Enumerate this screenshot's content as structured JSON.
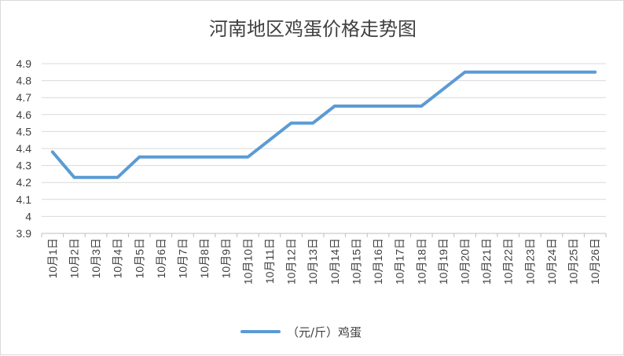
{
  "chart_data": {
    "type": "line",
    "title": "河南地区鸡蛋价格走势图",
    "categories": [
      "10月1日",
      "10月2日",
      "10月3日",
      "10月4日",
      "10月5日",
      "10月6日",
      "10月7日",
      "10月8日",
      "10月9日",
      "10月10日",
      "10月11日",
      "10月12日",
      "10月13日",
      "10月14日",
      "10月15日",
      "10月16日",
      "10月17日",
      "10月18日",
      "10月19日",
      "10月20日",
      "10月21日",
      "10月22日",
      "10月23日",
      "10月24日",
      "10月25日",
      "10月26日"
    ],
    "series": [
      {
        "name": "（元/斤）鸡蛋",
        "color": "#5b9bd5",
        "values": [
          4.38,
          4.23,
          4.23,
          4.23,
          4.35,
          4.35,
          4.35,
          4.35,
          4.35,
          4.35,
          4.45,
          4.55,
          4.55,
          4.65,
          4.65,
          4.65,
          4.65,
          4.65,
          4.75,
          4.85,
          4.85,
          4.85,
          4.85,
          4.85,
          4.85,
          4.85
        ]
      }
    ],
    "yticks": [
      "3.9",
      "4",
      "4.1",
      "4.2",
      "4.3",
      "4.4",
      "4.5",
      "4.6",
      "4.7",
      "4.8",
      "4.9"
    ],
    "ylim": [
      3.9,
      4.9
    ],
    "grid": true,
    "legend": "bottom"
  }
}
